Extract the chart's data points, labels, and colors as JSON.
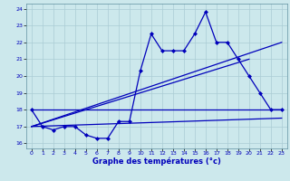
{
  "xlabel": "Graphe des températures (°c)",
  "bg_color": "#cce8ec",
  "grid_color": "#aaccd4",
  "line_color": "#0000bb",
  "xlim": [
    -0.5,
    23.5
  ],
  "ylim": [
    15.7,
    24.3
  ],
  "xticks": [
    0,
    1,
    2,
    3,
    4,
    5,
    6,
    7,
    8,
    9,
    10,
    11,
    12,
    13,
    14,
    15,
    16,
    17,
    18,
    19,
    20,
    21,
    22,
    23
  ],
  "yticks": [
    16,
    17,
    18,
    19,
    20,
    21,
    22,
    23,
    24
  ],
  "hourly_x": [
    0,
    1,
    2,
    3,
    4,
    5,
    6,
    7,
    8,
    9,
    10,
    11,
    12,
    13,
    14,
    15,
    16,
    17,
    18,
    19,
    20,
    21,
    22,
    23
  ],
  "hourly_y": [
    18,
    17,
    16.8,
    17,
    17,
    16.5,
    16.3,
    16.3,
    17.3,
    17.3,
    20.3,
    22.5,
    21.5,
    21.5,
    21.5,
    22.5,
    23.8,
    22,
    22,
    21,
    20,
    19,
    18,
    18
  ],
  "line1_x": [
    0,
    23
  ],
  "line1_y": [
    18,
    18
  ],
  "line2_x": [
    0,
    20
  ],
  "line2_y": [
    17,
    21.0
  ],
  "line3_x": [
    0,
    23
  ],
  "line3_y": [
    17,
    22.0
  ],
  "line4_x": [
    0,
    23
  ],
  "line4_y": [
    17,
    17.5
  ]
}
